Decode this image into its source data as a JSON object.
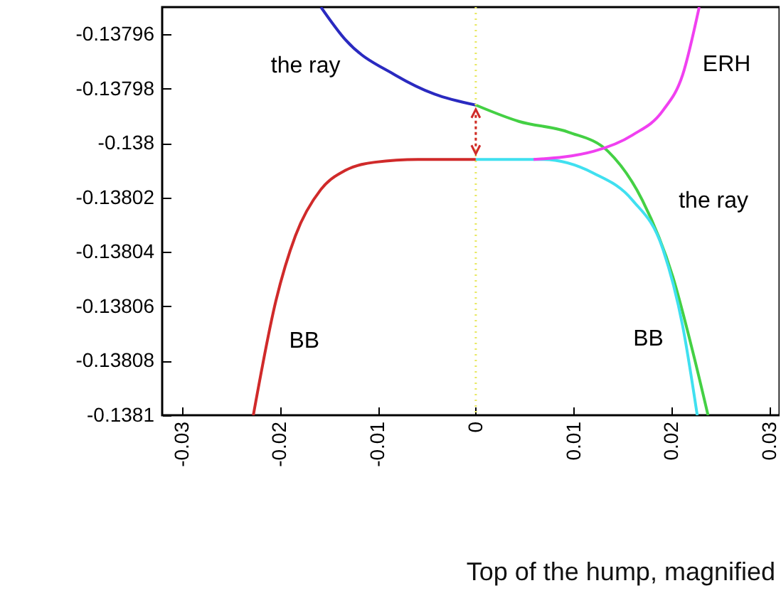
{
  "chart_data": {
    "type": "line",
    "xlim": [
      -0.032,
      0.031
    ],
    "ylim": [
      -0.1381,
      -0.13795
    ],
    "xticks": [
      -0.03,
      -0.02,
      -0.01,
      0,
      0.01,
      0.02,
      0.03
    ],
    "yticks": [
      -0.13796,
      -0.13798,
      -0.138,
      -0.13802,
      -0.13804,
      -0.13806,
      -0.13808,
      -0.1381
    ],
    "grid": false,
    "line_style": "solid",
    "marker": "none",
    "ref_lines": [
      {
        "axis": "x",
        "value": 0,
        "color": "#e8e860",
        "line_style": "dotted"
      }
    ],
    "annotations": [
      "Top of the  hump, magnified"
    ],
    "series": [
      {
        "name": "the ray",
        "color": "#2a2ac0",
        "x": [
          -0.0158,
          -0.0133,
          -0.0082,
          -0.0042,
          0
        ],
        "values": [
          -0.13795,
          -0.137962,
          -0.137975,
          -0.137982,
          -0.137986
        ]
      },
      {
        "name": "the ray",
        "color": "#44d044",
        "x": [
          0,
          0.0044,
          0.0095,
          0.0135,
          0.017,
          0.0201,
          0.0221,
          0.0237
        ],
        "values": [
          -0.137986,
          -0.137992,
          -0.137996,
          -0.138003,
          -0.138021,
          -0.138049,
          -0.138076,
          -0.1381
        ]
      },
      {
        "name": "BB",
        "color": "#d02a2a",
        "x": [
          -0.0227,
          -0.0204,
          -0.0184,
          -0.0158,
          -0.0133,
          -0.0103,
          -0.0059,
          0
        ],
        "values": [
          -0.1381,
          -0.138058,
          -0.138034,
          -0.138017,
          -0.13801,
          -0.138007,
          -0.138006,
          -0.138006
        ]
      },
      {
        "name": "BB",
        "color": "#40e0f0",
        "x": [
          0,
          0.0069,
          0.012,
          0.016,
          0.0191,
          0.0211,
          0.0226
        ],
        "values": [
          -0.138006,
          -0.138006,
          -0.138011,
          -0.138021,
          -0.138039,
          -0.138067,
          -0.1381
        ]
      },
      {
        "name": "ERH",
        "color": "#f040f0",
        "x": [
          0.0059,
          0.012,
          0.016,
          0.0191,
          0.0211,
          0.0228
        ],
        "values": [
          -0.138006,
          -0.138003,
          -0.137997,
          -0.137988,
          -0.137975,
          -0.13795
        ]
      }
    ]
  }
}
